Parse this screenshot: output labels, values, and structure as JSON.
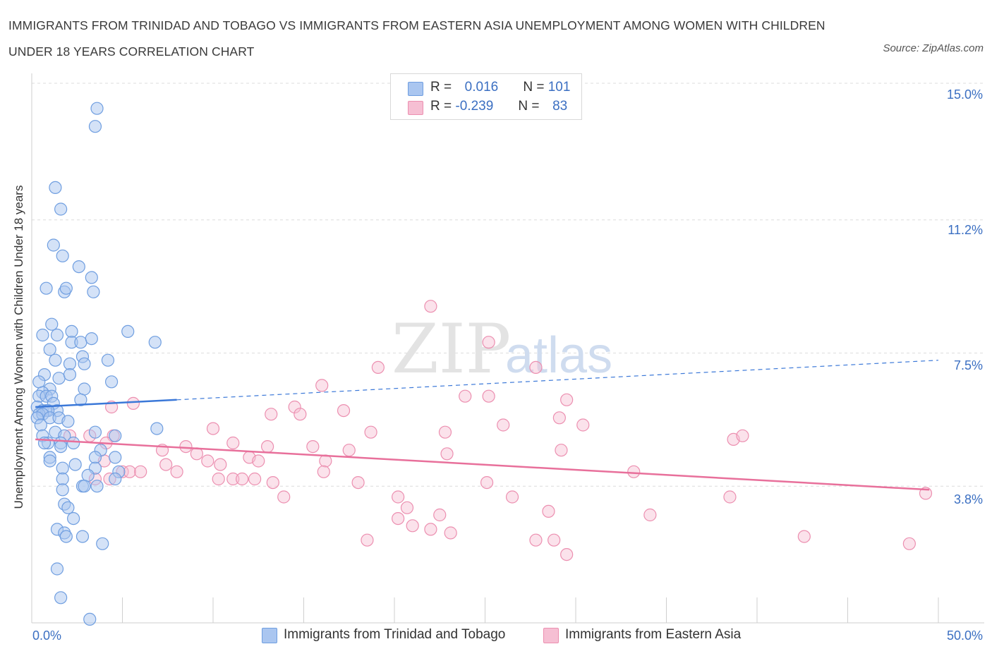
{
  "title": "IMMIGRANTS FROM TRINIDAD AND TOBAGO VS IMMIGRANTS FROM EASTERN ASIA UNEMPLOYMENT AMONG WOMEN WITH CHILDREN UNDER 18 YEARS CORRELATION CHART",
  "source": "Source: ZipAtlas.com",
  "watermark": {
    "zip": "ZIP",
    "atlas": "atlas"
  },
  "legend": {
    "rows": [
      {
        "r_label": "R =",
        "r_value": "0.016",
        "n_label": "N =",
        "n_value": "101"
      },
      {
        "r_label": "R =",
        "r_value": "-0.239",
        "n_label": "N =",
        "n_value": "83"
      }
    ]
  },
  "bottom_legend": {
    "series1": "Immigrants from Trinidad and Tobago",
    "series2": "Immigrants from Eastern Asia"
  },
  "axes": {
    "x_min_label": "0.0%",
    "x_max_label": "50.0%",
    "y_tick_labels": [
      "15.0%",
      "11.2%",
      "7.5%",
      "3.8%"
    ],
    "ylabel": "Unemployment Among Women with Children Under 18 years"
  },
  "colors": {
    "series1_fill": "#aac6f0",
    "series1_stroke": "#6f9ee0",
    "series1_line": "#3b78d8",
    "series2_fill": "#f6bfd3",
    "series2_stroke": "#ec8fb0",
    "series2_line": "#e8709b",
    "accent_text": "#3b6fc2"
  },
  "chart_data": {
    "type": "scatter",
    "xlim": [
      0,
      50
    ],
    "ylim": [
      0,
      15.0
    ],
    "y_ticks": [
      3.8,
      7.5,
      11.2,
      15.0
    ],
    "series": [
      {
        "name": "Immigrants from Trinidad and Tobago",
        "points": [
          [
            3.6,
            14.3
          ],
          [
            3.5,
            13.8
          ],
          [
            1.3,
            12.1
          ],
          [
            1.6,
            11.5
          ],
          [
            1.2,
            10.5
          ],
          [
            1.7,
            10.2
          ],
          [
            2.6,
            9.9
          ],
          [
            3.3,
            9.6
          ],
          [
            0.8,
            9.3
          ],
          [
            1.8,
            9.2
          ],
          [
            1.9,
            9.3
          ],
          [
            3.4,
            9.2
          ],
          [
            1.1,
            8.3
          ],
          [
            2.2,
            8.1
          ],
          [
            5.3,
            8.1
          ],
          [
            0.6,
            8.0
          ],
          [
            1.4,
            8.0
          ],
          [
            2.2,
            7.8
          ],
          [
            2.7,
            7.8
          ],
          [
            3.3,
            7.9
          ],
          [
            6.8,
            7.8
          ],
          [
            1.0,
            7.6
          ],
          [
            1.3,
            7.3
          ],
          [
            2.8,
            7.4
          ],
          [
            2.1,
            7.2
          ],
          [
            2.9,
            7.2
          ],
          [
            4.2,
            7.3
          ],
          [
            0.7,
            6.9
          ],
          [
            1.5,
            6.8
          ],
          [
            2.1,
            6.9
          ],
          [
            4.4,
            6.7
          ],
          [
            0.4,
            6.7
          ],
          [
            1.0,
            6.5
          ],
          [
            2.9,
            6.5
          ],
          [
            0.6,
            6.4
          ],
          [
            0.4,
            6.3
          ],
          [
            0.8,
            6.3
          ],
          [
            1.1,
            6.3
          ],
          [
            1.2,
            6.1
          ],
          [
            2.7,
            6.2
          ],
          [
            0.3,
            6.0
          ],
          [
            0.6,
            5.9
          ],
          [
            0.8,
            5.9
          ],
          [
            1.4,
            5.9
          ],
          [
            0.9,
            5.9
          ],
          [
            0.4,
            5.8
          ],
          [
            0.6,
            5.8
          ],
          [
            0.3,
            5.7
          ],
          [
            1.0,
            5.7
          ],
          [
            1.5,
            5.7
          ],
          [
            2.0,
            5.6
          ],
          [
            0.5,
            5.5
          ],
          [
            6.9,
            5.4
          ],
          [
            0.6,
            5.2
          ],
          [
            1.3,
            5.3
          ],
          [
            1.8,
            5.2
          ],
          [
            3.5,
            5.3
          ],
          [
            4.6,
            5.2
          ],
          [
            0.9,
            5.0
          ],
          [
            0.7,
            5.0
          ],
          [
            1.6,
            5.0
          ],
          [
            2.3,
            5.0
          ],
          [
            1.6,
            4.9
          ],
          [
            3.8,
            4.8
          ],
          [
            1.0,
            4.6
          ],
          [
            3.5,
            4.6
          ],
          [
            4.6,
            4.6
          ],
          [
            1.0,
            4.5
          ],
          [
            2.4,
            4.4
          ],
          [
            1.7,
            4.3
          ],
          [
            3.5,
            4.3
          ],
          [
            4.8,
            4.2
          ],
          [
            4.6,
            4.0
          ],
          [
            1.7,
            4.0
          ],
          [
            3.1,
            4.1
          ],
          [
            2.8,
            3.8
          ],
          [
            2.9,
            3.8
          ],
          [
            3.6,
            3.8
          ],
          [
            1.7,
            3.7
          ],
          [
            1.8,
            3.3
          ],
          [
            2.0,
            3.2
          ],
          [
            2.3,
            2.9
          ],
          [
            1.4,
            2.6
          ],
          [
            1.8,
            2.5
          ],
          [
            1.9,
            2.4
          ],
          [
            2.8,
            2.4
          ],
          [
            3.9,
            2.2
          ],
          [
            1.4,
            1.5
          ],
          [
            1.6,
            0.7
          ],
          [
            3.2,
            0.1
          ]
        ],
        "trend": {
          "x_start": 0.2,
          "y_start": 6.0,
          "x_solid_end": 8.0,
          "y_solid_end": 6.2,
          "x_end": 50.0,
          "y_end": 7.3
        }
      },
      {
        "name": "Immigrants from Eastern Asia",
        "points": [
          [
            22.0,
            8.8
          ],
          [
            25.2,
            7.8
          ],
          [
            19.1,
            7.1
          ],
          [
            27.8,
            7.1
          ],
          [
            16.0,
            6.6
          ],
          [
            23.9,
            6.3
          ],
          [
            25.2,
            6.3
          ],
          [
            29.5,
            6.2
          ],
          [
            5.6,
            6.1
          ],
          [
            4.4,
            6.0
          ],
          [
            14.5,
            6.0
          ],
          [
            14.8,
            5.8
          ],
          [
            17.2,
            5.9
          ],
          [
            13.2,
            5.8
          ],
          [
            29.1,
            5.7
          ],
          [
            30.4,
            5.5
          ],
          [
            26.0,
            5.5
          ],
          [
            10.0,
            5.4
          ],
          [
            18.7,
            5.3
          ],
          [
            22.8,
            5.3
          ],
          [
            38.7,
            5.1
          ],
          [
            39.2,
            5.2
          ],
          [
            2.1,
            5.2
          ],
          [
            3.2,
            5.2
          ],
          [
            4.5,
            5.2
          ],
          [
            11.1,
            5.0
          ],
          [
            4.1,
            5.0
          ],
          [
            13.0,
            4.9
          ],
          [
            15.5,
            4.9
          ],
          [
            8.5,
            4.9
          ],
          [
            9.1,
            4.7
          ],
          [
            7.2,
            4.8
          ],
          [
            17.5,
            4.8
          ],
          [
            22.9,
            4.7
          ],
          [
            12.0,
            4.6
          ],
          [
            29.2,
            4.8
          ],
          [
            16.2,
            4.5
          ],
          [
            9.7,
            4.5
          ],
          [
            12.5,
            4.5
          ],
          [
            10.4,
            4.4
          ],
          [
            4.0,
            4.5
          ],
          [
            5.0,
            4.2
          ],
          [
            7.4,
            4.4
          ],
          [
            8.0,
            4.2
          ],
          [
            5.4,
            4.2
          ],
          [
            6.0,
            4.2
          ],
          [
            4.3,
            4.0
          ],
          [
            10.3,
            4.0
          ],
          [
            11.1,
            4.0
          ],
          [
            11.6,
            4.0
          ],
          [
            12.3,
            4.0
          ],
          [
            13.3,
            3.9
          ],
          [
            16.1,
            4.2
          ],
          [
            18.0,
            3.9
          ],
          [
            25.1,
            3.9
          ],
          [
            33.2,
            4.2
          ],
          [
            3.5,
            4.0
          ],
          [
            13.9,
            3.5
          ],
          [
            20.2,
            3.5
          ],
          [
            26.5,
            3.5
          ],
          [
            38.5,
            3.5
          ],
          [
            49.3,
            3.6
          ],
          [
            20.7,
            3.2
          ],
          [
            28.5,
            3.1
          ],
          [
            22.5,
            3.0
          ],
          [
            34.1,
            3.0
          ],
          [
            20.2,
            2.9
          ],
          [
            21.0,
            2.7
          ],
          [
            22.0,
            2.6
          ],
          [
            23.1,
            2.5
          ],
          [
            18.5,
            2.3
          ],
          [
            27.8,
            2.3
          ],
          [
            28.8,
            2.3
          ],
          [
            42.6,
            2.4
          ],
          [
            48.4,
            2.2
          ],
          [
            29.5,
            1.9
          ]
        ],
        "trend": {
          "x_start": 0.2,
          "y_start": 5.1,
          "x_end": 49.5,
          "y_end": 3.7
        }
      }
    ]
  }
}
